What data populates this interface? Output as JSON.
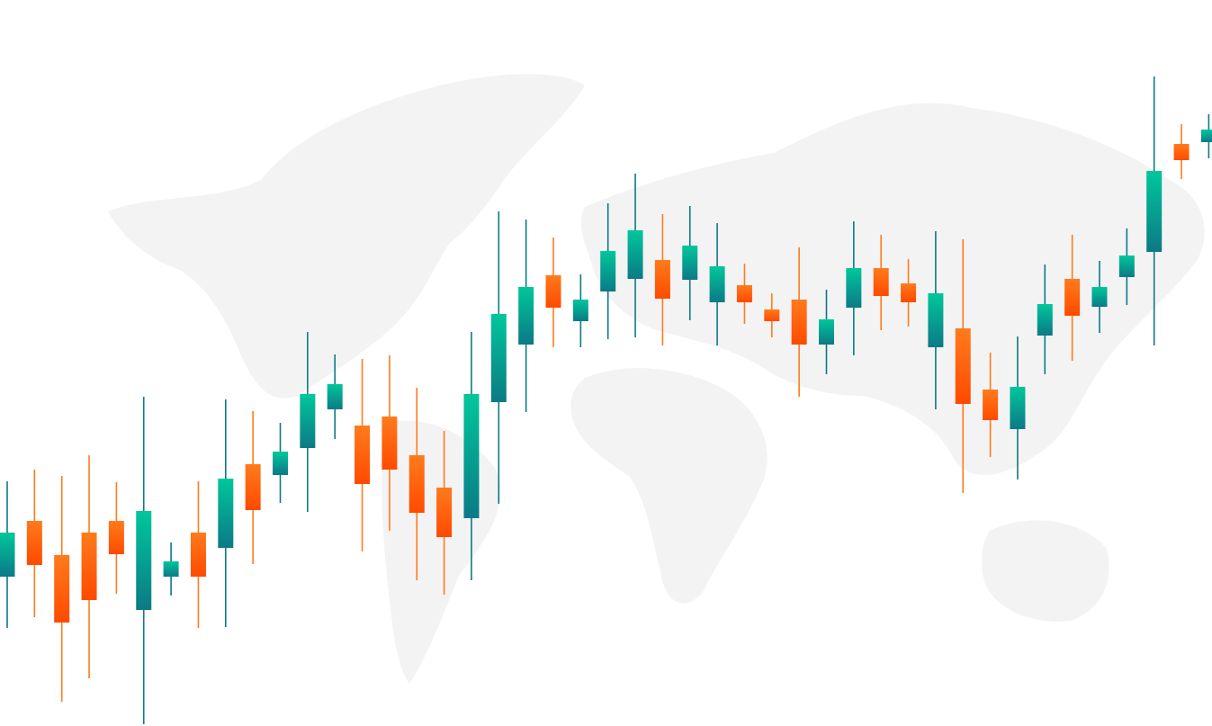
{
  "chart_data": {
    "type": "candlestick",
    "open": [
      166,
      228,
      190,
      215,
      228,
      129,
      166,
      215,
      198,
      291,
      279,
      309,
      352,
      334,
      344,
      301,
      265,
      231,
      360,
      424,
      501,
      450,
      483,
      497,
      518,
      496,
      471,
      490,
      463,
      474,
      424,
      465,
      509,
      492,
      421,
      442,
      374,
      330,
      434,
      497,
      466,
      499,
      527,
      647,
      649
    ],
    "high": [
      272,
      285,
      278,
      301,
      271,
      366,
      204,
      272,
      363,
      350,
      337,
      438,
      413,
      408,
      412,
      376,
      328,
      438,
      572,
      563,
      543,
      502,
      581,
      614,
      569,
      578,
      559,
      514,
      481,
      532,
      485,
      561,
      546,
      519,
      550,
      541,
      415,
      433,
      513,
      546,
      517,
      553,
      722,
      669,
      680
    ],
    "low": [
      109,
      121,
      27,
      53,
      147,
      2,
      145,
      109,
      110,
      180,
      248,
      238,
      319,
      194,
      217,
      162,
      146,
      162,
      247,
      349,
      421,
      421,
      430,
      432,
      423,
      451,
      423,
      447,
      432,
      366,
      391,
      412,
      440,
      444,
      352,
      259,
      299,
      274,
      391,
      406,
      437,
      468,
      423,
      608,
      631
    ],
    "close": [
      215,
      179,
      115,
      140,
      191,
      239,
      183,
      166,
      275,
      240,
      305,
      369,
      380,
      269,
      285,
      237,
      210,
      369,
      458,
      488,
      465,
      474,
      528,
      551,
      475,
      534,
      511,
      471,
      450,
      424,
      452,
      509,
      478,
      471,
      481,
      358,
      340,
      377,
      469,
      456,
      488,
      523,
      617,
      629,
      663
    ],
    "ylim": [
      0,
      807
    ],
    "up_color": [
      "#00c79b",
      "#0b7a86"
    ],
    "down_color": [
      "#ff7b1c",
      "#ff4a00"
    ]
  }
}
